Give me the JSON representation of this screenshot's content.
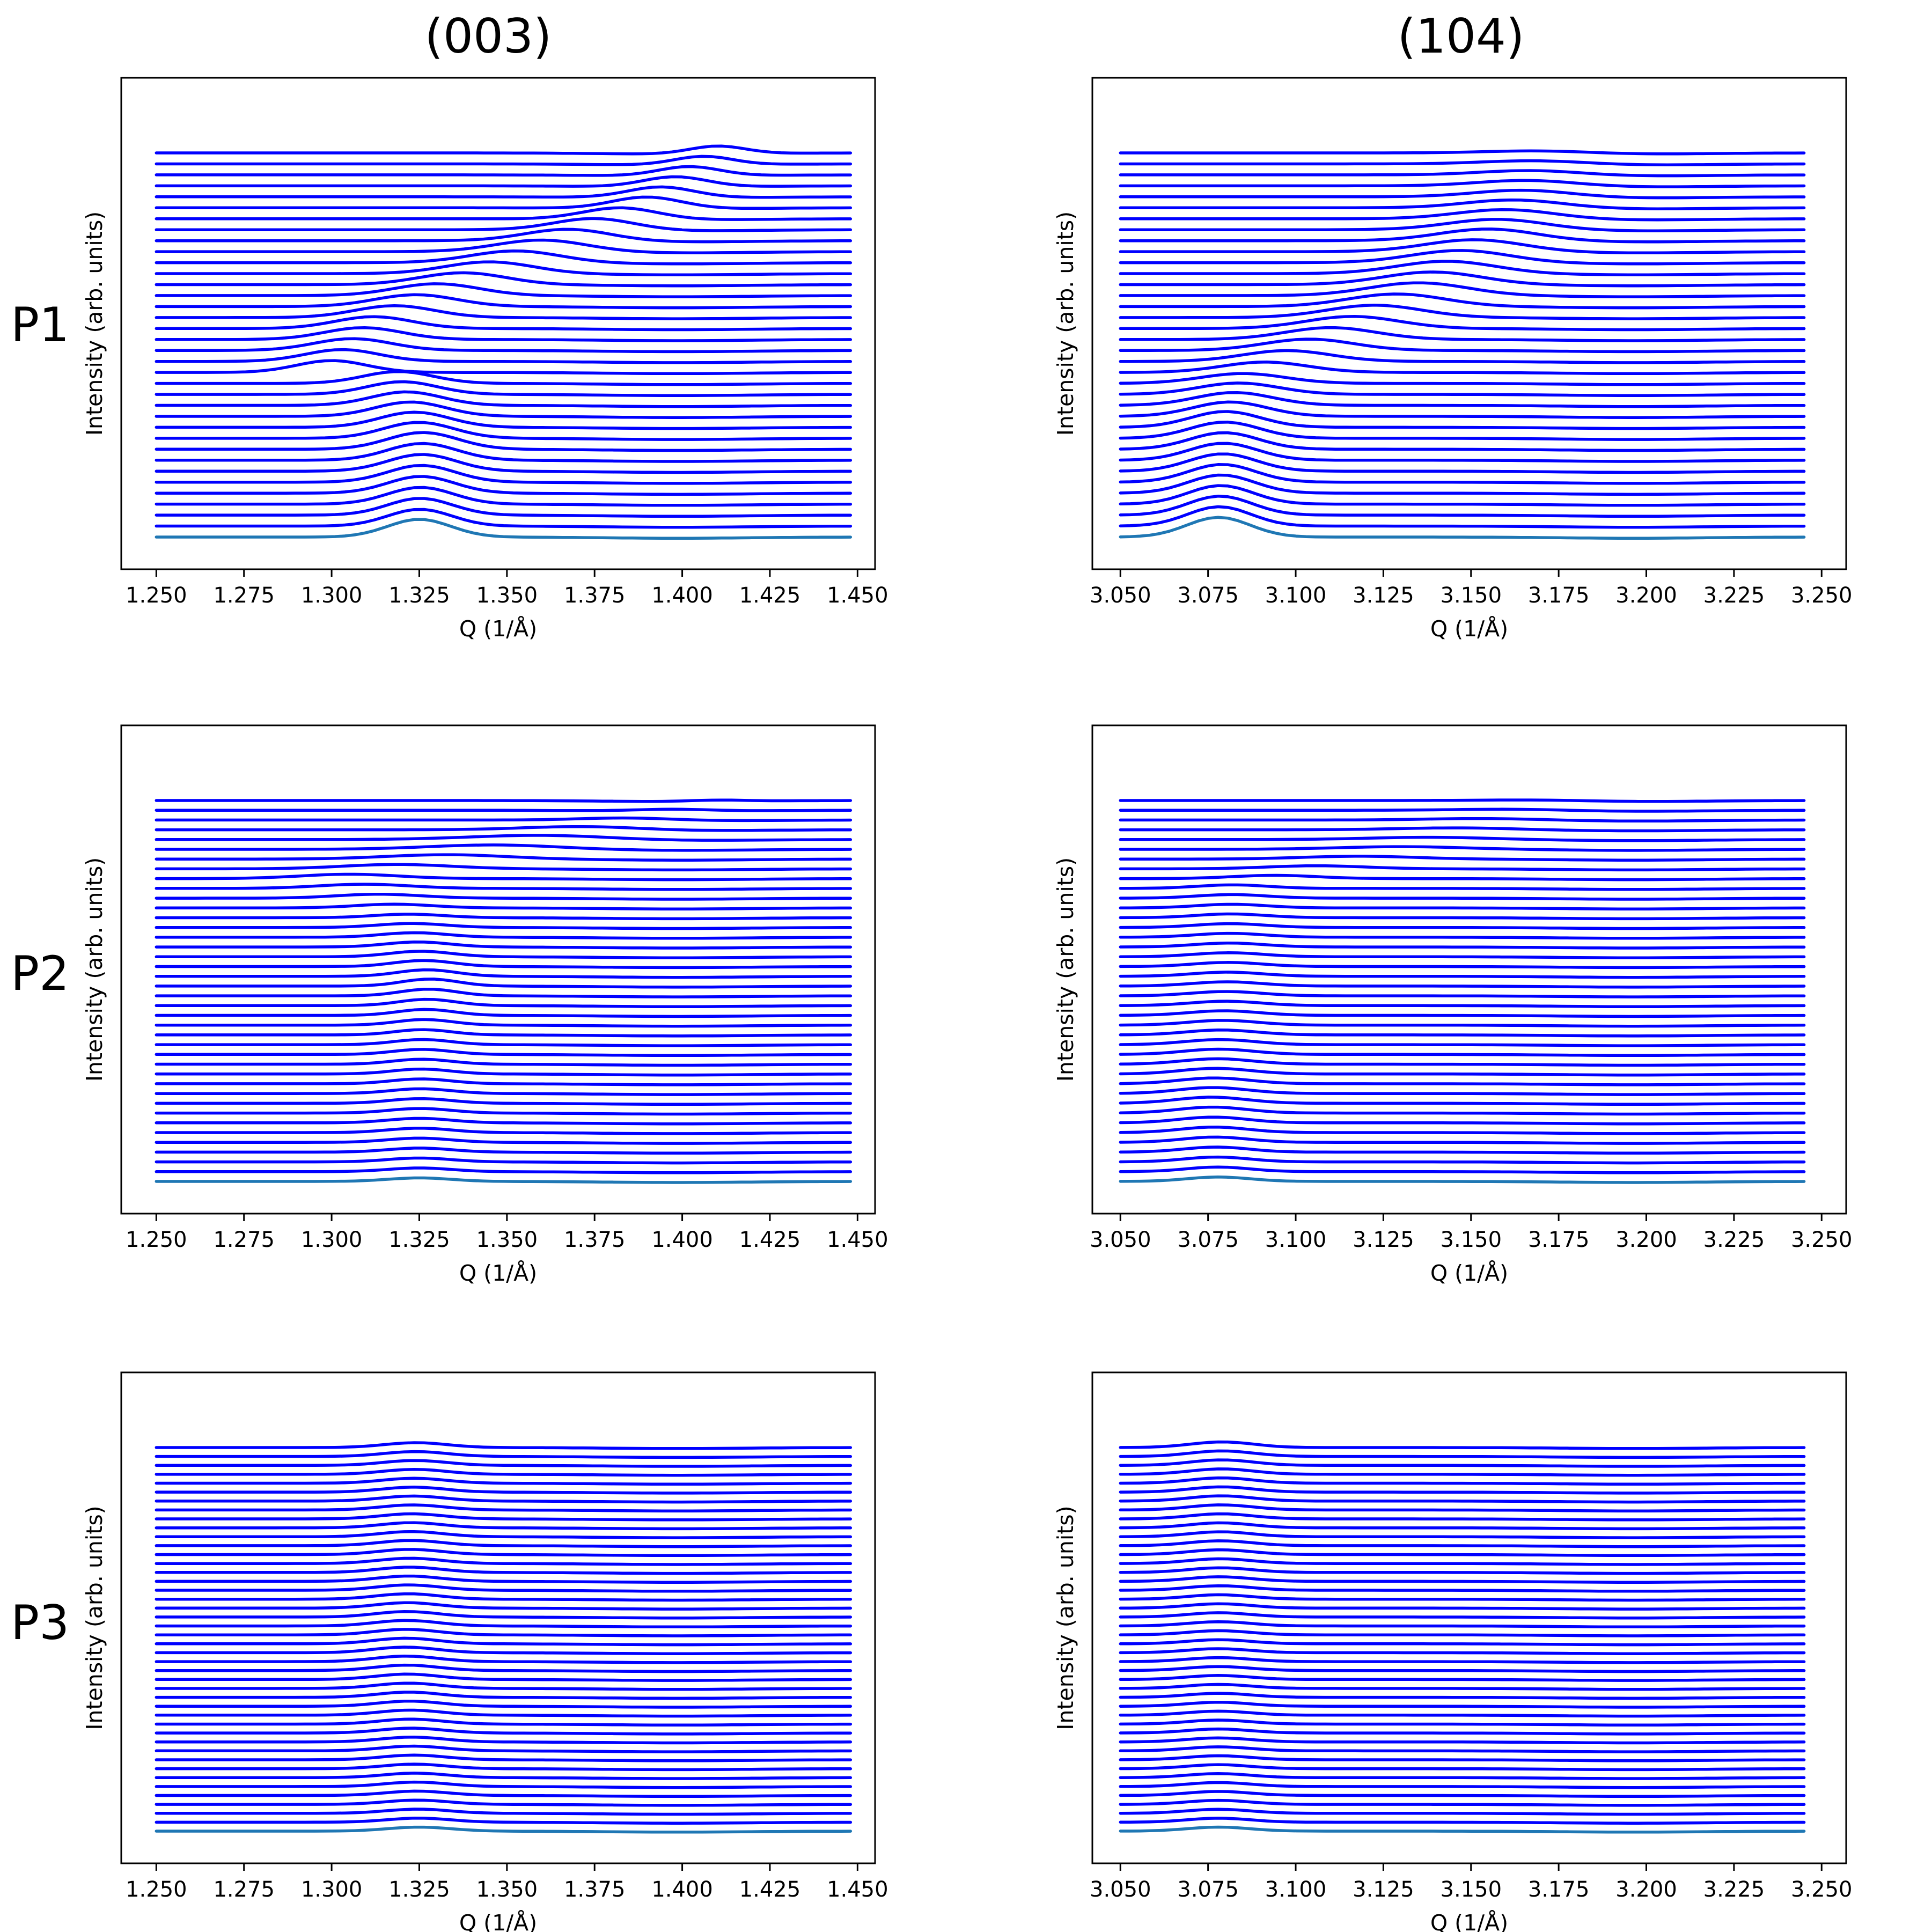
{
  "figure": {
    "column_titles": [
      "(003)",
      "(104)"
    ],
    "row_labels": [
      "P1",
      "P2",
      "P3"
    ]
  },
  "colors": {
    "trace": "#0000ff",
    "reference_trace": "#1f77b4"
  },
  "chart_data": [
    {
      "type": "line",
      "panel": "P1 (003)",
      "row": "P1",
      "column": "(003)",
      "xlabel": "Q (1/Å)",
      "ylabel": "Intensity (arb. units)",
      "xlim": [
        1.24,
        1.455
      ],
      "xticks": [
        "1.250",
        "1.275",
        "1.300",
        "1.325",
        "1.350",
        "1.375",
        "1.400",
        "1.425",
        "1.450"
      ],
      "yticks_shown": false,
      "x_range": [
        1.25,
        1.448
      ],
      "n_traces": 36,
      "baseline": {
        "center": 1.325,
        "width": 0.009,
        "amplitude": 0.18
      },
      "peak_path": [
        {
          "trace": 0,
          "center": 1.325,
          "width": 0.009,
          "amplitude": 0.17
        },
        {
          "trace": 8,
          "center": 1.326,
          "width": 0.01,
          "amplitude": 0.17
        },
        {
          "trace": 14,
          "center": 1.319,
          "width": 0.01,
          "amplitude": 0.12
        },
        {
          "trace": 15,
          "center": 1.3,
          "width": 0.01,
          "amplitude": 0.12
        },
        {
          "trace": 17,
          "center": 1.306,
          "width": 0.011,
          "amplitude": 0.12
        },
        {
          "trace": 19,
          "center": 1.312,
          "width": 0.011,
          "amplitude": 0.12
        },
        {
          "trace": 22,
          "center": 1.33,
          "width": 0.012,
          "amplitude": 0.12
        },
        {
          "trace": 26,
          "center": 1.36,
          "width": 0.013,
          "amplitude": 0.12
        },
        {
          "trace": 30,
          "center": 1.39,
          "width": 0.01,
          "amplitude": 0.12
        },
        {
          "trace": 35,
          "center": 1.41,
          "width": 0.008,
          "amplitude": 0.08
        }
      ]
    },
    {
      "type": "line",
      "panel": "P1 (104)",
      "row": "P1",
      "column": "(104)",
      "xlabel": "Q (1/Å)",
      "ylabel": "Intensity (arb. units)",
      "xlim": [
        3.042,
        3.257
      ],
      "xticks": [
        "3.050",
        "3.075",
        "3.100",
        "3.125",
        "3.150",
        "3.175",
        "3.200",
        "3.225",
        "3.250"
      ],
      "yticks_shown": false,
      "x_range": [
        3.05,
        3.245
      ],
      "n_traces": 36,
      "baseline": {
        "center": 3.078,
        "width": 0.009,
        "amplitude": 0.2
      },
      "peak_path": [
        {
          "trace": 0,
          "center": 3.078,
          "width": 0.009,
          "amplitude": 0.2
        },
        {
          "trace": 10,
          "center": 3.08,
          "width": 0.01,
          "amplitude": 0.16
        },
        {
          "trace": 14,
          "center": 3.085,
          "width": 0.012,
          "amplitude": 0.1
        },
        {
          "trace": 18,
          "center": 3.11,
          "width": 0.013,
          "amplitude": 0.12
        },
        {
          "trace": 22,
          "center": 3.135,
          "width": 0.014,
          "amplitude": 0.13
        },
        {
          "trace": 27,
          "center": 3.155,
          "width": 0.014,
          "amplitude": 0.12
        },
        {
          "trace": 31,
          "center": 3.165,
          "width": 0.014,
          "amplitude": 0.07
        },
        {
          "trace": 35,
          "center": 3.17,
          "width": 0.015,
          "amplitude": 0.025
        }
      ]
    },
    {
      "type": "line",
      "panel": "P2 (003)",
      "row": "P2",
      "column": "(003)",
      "xlabel": "Q (1/Å)",
      "ylabel": "Intensity (arb. units)",
      "xlim": [
        1.24,
        1.455
      ],
      "xticks": [
        "1.250",
        "1.275",
        "1.300",
        "1.325",
        "1.350",
        "1.375",
        "1.400",
        "1.425",
        "1.450"
      ],
      "yticks_shown": false,
      "x_range": [
        1.25,
        1.448
      ],
      "n_traces": 40,
      "baseline": {
        "center": 1.325,
        "width": 0.009,
        "amplitude": 0.04
      },
      "peak_path": [
        {
          "trace": 0,
          "center": 1.325,
          "width": 0.009,
          "amplitude": 0.04
        },
        {
          "trace": 5,
          "center": 1.325,
          "width": 0.009,
          "amplitude": 0.05
        },
        {
          "trace": 15,
          "center": 1.326,
          "width": 0.008,
          "amplitude": 0.06
        },
        {
          "trace": 20,
          "center": 1.328,
          "width": 0.008,
          "amplitude": 0.08
        },
        {
          "trace": 27,
          "center": 1.322,
          "width": 0.01,
          "amplitude": 0.04
        },
        {
          "trace": 31,
          "center": 1.305,
          "width": 0.014,
          "amplitude": 0.05
        },
        {
          "trace": 35,
          "center": 1.36,
          "width": 0.02,
          "amplitude": 0.05
        },
        {
          "trace": 39,
          "center": 1.41,
          "width": 0.008,
          "amplitude": 0.015
        }
      ]
    },
    {
      "type": "line",
      "panel": "P2 (104)",
      "row": "P2",
      "column": "(104)",
      "xlabel": "Q (1/Å)",
      "ylabel": "Intensity (arb. units)",
      "xlim": [
        3.042,
        3.257
      ],
      "xticks": [
        "3.050",
        "3.075",
        "3.100",
        "3.125",
        "3.150",
        "3.175",
        "3.200",
        "3.225",
        "3.250"
      ],
      "yticks_shown": false,
      "x_range": [
        3.05,
        3.245
      ],
      "n_traces": 40,
      "baseline": {
        "center": 3.078,
        "width": 0.009,
        "amplitude": 0.05
      },
      "peak_path": [
        {
          "trace": 0,
          "center": 3.078,
          "width": 0.009,
          "amplitude": 0.05
        },
        {
          "trace": 8,
          "center": 3.076,
          "width": 0.01,
          "amplitude": 0.07
        },
        {
          "trace": 18,
          "center": 3.08,
          "width": 0.01,
          "amplitude": 0.05
        },
        {
          "trace": 30,
          "center": 3.082,
          "width": 0.01,
          "amplitude": 0.04
        },
        {
          "trace": 34,
          "center": 3.13,
          "width": 0.018,
          "amplitude": 0.03
        },
        {
          "trace": 39,
          "center": 3.17,
          "width": 0.015,
          "amplitude": 0.01
        }
      ]
    },
    {
      "type": "line",
      "panel": "P3 (003)",
      "row": "P3",
      "column": "(003)",
      "xlabel": "Q (1/Å)",
      "ylabel": "Intensity (arb. units)",
      "xlim": [
        1.24,
        1.455
      ],
      "xticks": [
        "1.250",
        "1.275",
        "1.300",
        "1.325",
        "1.350",
        "1.375",
        "1.400",
        "1.425",
        "1.450"
      ],
      "yticks_shown": false,
      "x_range": [
        1.25,
        1.448
      ],
      "n_traces": 44,
      "baseline": {
        "center": 1.325,
        "width": 0.009,
        "amplitude": 0.05
      },
      "peak_path": [
        {
          "trace": 0,
          "center": 1.325,
          "width": 0.009,
          "amplitude": 0.05
        },
        {
          "trace": 20,
          "center": 1.321,
          "width": 0.009,
          "amplitude": 0.07
        },
        {
          "trace": 43,
          "center": 1.324,
          "width": 0.009,
          "amplitude": 0.06
        }
      ]
    },
    {
      "type": "line",
      "panel": "P3 (104)",
      "row": "P3",
      "column": "(104)",
      "xlabel": "Q (1/Å)",
      "ylabel": "Intensity (arb. units)",
      "xlim": [
        3.042,
        3.257
      ],
      "xticks": [
        "3.050",
        "3.075",
        "3.100",
        "3.125",
        "3.150",
        "3.175",
        "3.200",
        "3.225",
        "3.250"
      ],
      "yticks_shown": false,
      "x_range": [
        3.05,
        3.245
      ],
      "n_traces": 44,
      "baseline": {
        "center": 3.078,
        "width": 0.009,
        "amplitude": 0.05
      },
      "peak_path": [
        {
          "trace": 0,
          "center": 3.078,
          "width": 0.009,
          "amplitude": 0.05
        },
        {
          "trace": 20,
          "center": 3.078,
          "width": 0.009,
          "amplitude": 0.05
        },
        {
          "trace": 43,
          "center": 3.079,
          "width": 0.009,
          "amplitude": 0.07
        }
      ]
    }
  ]
}
